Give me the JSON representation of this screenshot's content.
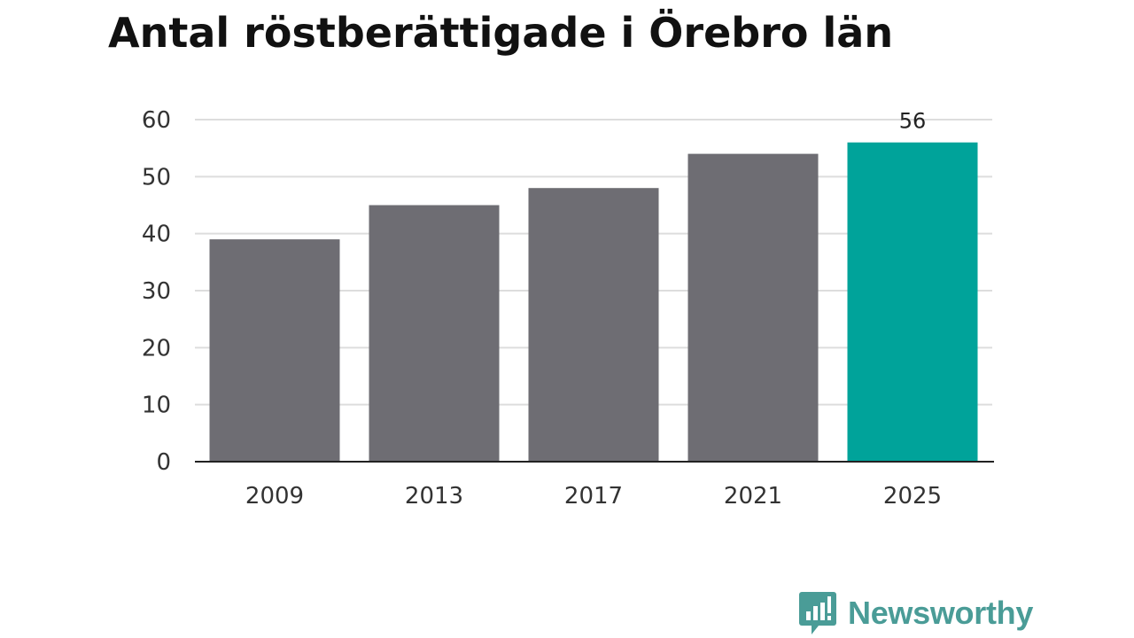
{
  "chart_data": {
    "type": "bar",
    "title": "Antal röstberättigade i Örebro län",
    "categories": [
      "2009",
      "2013",
      "2017",
      "2021",
      "2025"
    ],
    "values": [
      39,
      45,
      48,
      54,
      56
    ],
    "ylim": [
      0,
      60
    ],
    "yticks": [
      0,
      10,
      20,
      30,
      40,
      50,
      60
    ],
    "grid": true,
    "data_labels": {
      "2025": "56"
    },
    "colors": {
      "default_bar": "#6e6d73",
      "highlight_bar": "#00a39a",
      "grid": "#dddddd",
      "axis": "#222222"
    },
    "highlight_index": 4
  },
  "brand": {
    "name": "Newsworthy",
    "icon": "newsworthy-logo-icon",
    "color": "#4a9c97"
  }
}
